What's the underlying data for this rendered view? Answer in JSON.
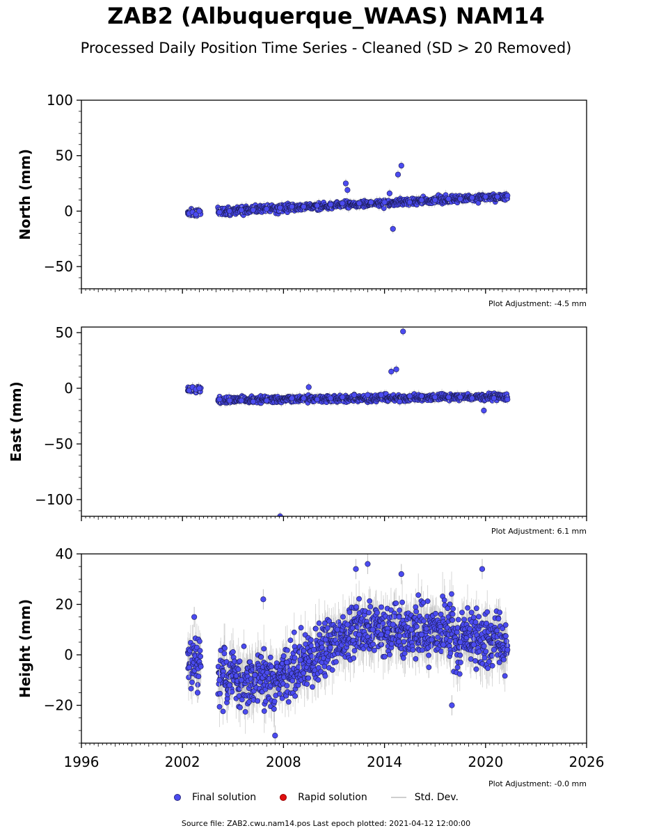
{
  "title": "ZAB2 (Albuquerque_WAAS) NAM14",
  "subtitle": "Processed Daily Position Time Series - Cleaned (SD > 20 Removed)",
  "legend": {
    "final": "Final solution",
    "rapid": "Rapid solution",
    "sd": "Std. Dev."
  },
  "source": "Source file: ZAB2.cwu.nam14.pos  Last epoch plotted: 2021-04-12 12:00:00",
  "colors": {
    "final": "#4b4bf0",
    "final_edge": "#1a1a50",
    "rapid": "#e01010",
    "sd": "#bdbdbd"
  },
  "chart_data": [
    {
      "type": "scatter",
      "ylabel": "North (mm)",
      "adjustment": "Plot Adjustment: -4.5 mm",
      "xlim": [
        1996,
        2026
      ],
      "ylim": [
        -70,
        100
      ],
      "yticks": [
        -50,
        0,
        50,
        100
      ],
      "xticks": [
        1996,
        2002,
        2008,
        2014,
        2020,
        2026
      ],
      "series": [
        {
          "x": [
            2002.4,
            2002.6,
            2002.8,
            2003.0,
            2004.2,
            2004.8,
            2005.5,
            2006.2,
            2007.0,
            2007.8,
            2008.5,
            2009.2,
            2010.0,
            2010.8,
            2011.5,
            2011.7,
            2011.8,
            2012.5,
            2013.2,
            2014.0,
            2014.3,
            2014.5,
            2014.8,
            2015.0,
            2015.5,
            2016.2,
            2017.0,
            2017.8,
            2018.5,
            2019.2,
            2020.0,
            2020.7,
            2021.3
          ],
          "y": [
            -2,
            -1,
            -3,
            0,
            -1,
            0,
            1,
            1,
            2,
            3,
            4,
            4,
            5,
            6,
            7,
            25,
            19,
            7,
            8,
            8,
            16,
            -16,
            33,
            41,
            8,
            10,
            10,
            11,
            11,
            12,
            13,
            13,
            14
          ]
        }
      ]
    },
    {
      "type": "scatter",
      "ylabel": "East (mm)",
      "adjustment": "Plot Adjustment: 6.1 mm",
      "xlim": [
        1996,
        2026
      ],
      "ylim": [
        -115,
        55
      ],
      "yticks": [
        -100,
        -50,
        0,
        50
      ],
      "xticks": [
        1996,
        2002,
        2008,
        2014,
        2020,
        2026
      ],
      "series": [
        {
          "x": [
            2002.4,
            2002.6,
            2002.8,
            2003.0,
            2004.2,
            2004.8,
            2005.5,
            2006.2,
            2007.0,
            2007.8,
            2008.5,
            2009.2,
            2009.5,
            2010.0,
            2010.8,
            2011.5,
            2012.2,
            2013.0,
            2013.8,
            2014.4,
            2014.7,
            2014.9,
            2015.1,
            2015.5,
            2016.2,
            2017.0,
            2017.8,
            2018.5,
            2019.2,
            2019.9,
            2020.5,
            2021.3
          ],
          "y": [
            -2,
            1,
            -1,
            0,
            -10,
            -11,
            -11,
            -12,
            -11,
            -115,
            -9,
            -9,
            1,
            -10,
            -9,
            -8,
            -6,
            -6,
            -6,
            15,
            17,
            -12,
            51,
            -7,
            -7,
            -8,
            -8,
            -8,
            -9,
            -20,
            -9,
            -10
          ]
        }
      ]
    },
    {
      "type": "scatter",
      "ylabel": "Height (mm)",
      "adjustment": "Plot Adjustment: -0.0 mm",
      "xlim": [
        1996,
        2026
      ],
      "ylim": [
        -35,
        40
      ],
      "yticks": [
        -20,
        0,
        20,
        40
      ],
      "xticks": [
        1996,
        2002,
        2008,
        2014,
        2020,
        2026
      ],
      "series": [
        {
          "x": [
            2002.4,
            2002.7,
            2002.9,
            2004.2,
            2004.8,
            2005.5,
            2006.3,
            2006.8,
            2007.5,
            2008.2,
            2009.0,
            2009.8,
            2010.5,
            2011.2,
            2011.8,
            2012.3,
            2012.5,
            2013.0,
            2013.3,
            2013.8,
            2014.5,
            2015.0,
            2015.6,
            2016.2,
            2016.8,
            2017.5,
            2018.0,
            2018.5,
            2019.3,
            2019.8,
            2020.5,
            2021.3
          ],
          "y": [
            -5,
            15,
            -15,
            -10,
            -12,
            -10,
            -8,
            22,
            -32,
            -3,
            -2,
            2,
            6,
            10,
            12,
            34,
            8,
            36,
            10,
            8,
            12,
            32,
            10,
            8,
            6,
            4,
            -20,
            5,
            4,
            34,
            2,
            2
          ]
        }
      ]
    }
  ]
}
